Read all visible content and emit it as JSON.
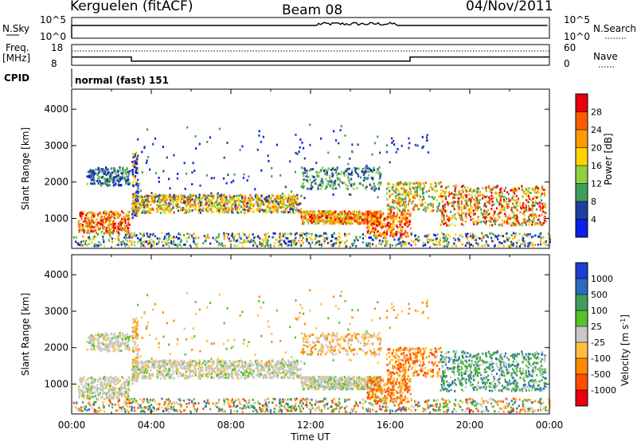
{
  "header": {
    "station": "Kerguelen (fitACF)",
    "beam": "Beam 08",
    "date": "04/Nov/2011"
  },
  "top_panels": {
    "nsky": {
      "label": "N.Sky",
      "ticks": [
        "10^5",
        "10^0"
      ],
      "right_ticks": [
        "10^5",
        "10^0"
      ],
      "right_label": "N.Search"
    },
    "freq": {
      "label_line1": "Freq.",
      "label_line2": "[MHz]",
      "ticks": [
        "18",
        "8"
      ],
      "right_ticks": [
        "60",
        "0"
      ],
      "right_label": "Nave",
      "levels": [
        {
          "from_hour": 0,
          "to_hour": 3.0,
          "mhz": 12.0
        },
        {
          "from_hour": 3.0,
          "to_hour": 17.0,
          "mhz": 10.0
        },
        {
          "from_hour": 17.0,
          "to_hour": 24.0,
          "mhz": 12.0
        }
      ]
    },
    "cpid": {
      "label": "CPID",
      "value": "normal (fast) 151"
    }
  },
  "chart_data": [
    {
      "type": "heatmap",
      "quantity": "power",
      "ylabel": "Slant Range [km]",
      "xlabel": "",
      "xlim": [
        0,
        24
      ],
      "ylim": [
        180,
        4550
      ],
      "y_ticks": [
        "1000",
        "2000",
        "3000",
        "4000"
      ],
      "y_tick_values": [
        1000,
        2000,
        3000,
        4000
      ],
      "colorbar": {
        "label": "Power [dB]",
        "ticks": [
          "28",
          "24",
          "20",
          "16",
          "12",
          "8",
          "4"
        ],
        "colors": [
          "#e8000d",
          "#ff5a00",
          "#ff9a00",
          "#ffd400",
          "#90d040",
          "#3f9e5b",
          "#1f3fa0",
          "#0b1ee8"
        ]
      }
    },
    {
      "type": "heatmap",
      "quantity": "velocity",
      "ylabel": "Slant Range [km]",
      "xlabel": "Time UT",
      "xlim": [
        0,
        24
      ],
      "ylim": [
        180,
        4550
      ],
      "y_ticks": [
        "1000",
        "2000",
        "3000",
        "4000"
      ],
      "y_tick_values": [
        1000,
        2000,
        3000,
        4000
      ],
      "x_ticks": [
        "00:00",
        "04:00",
        "08:00",
        "12:00",
        "16:00",
        "20:00",
        "00:00"
      ],
      "x_tick_values": [
        0,
        4,
        8,
        12,
        16,
        20,
        24
      ],
      "colorbar": {
        "label": "Velocity [m s",
        "label_sup": "-1",
        "label_close": "]",
        "ticks": [
          "1000",
          "500",
          "100",
          "25",
          "-25",
          "-100",
          "-500",
          "-1000"
        ],
        "colors": [
          "#1c3fd0",
          "#2a6bc0",
          "#3f9e5b",
          "#58c22a",
          "#c8c8c8",
          "#ffc040",
          "#ff8a00",
          "#ff4d00",
          "#e8000d"
        ]
      }
    }
  ]
}
